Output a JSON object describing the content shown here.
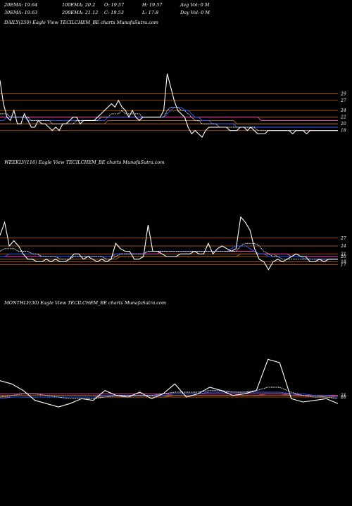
{
  "header": {
    "row1": [
      "20EMA: 19.64",
      "100EMA: 20.2",
      "O: 19.57",
      "H: 19.57",
      "Avg Vol: 0  M"
    ],
    "row2": [
      "30EMA: 19.63",
      "200EMA: 21.12",
      "C: 19.53",
      "L: 17.8",
      "Day Vol: 0  M"
    ]
  },
  "colors": {
    "price": "#ffffff",
    "ema_fast": "#ffffff",
    "ema_blue": "#2a5cff",
    "ema_pink": "#ff44cc",
    "ema_brown": "#b26a2a",
    "levels": "#cc6a1a"
  },
  "chart_data": [
    {
      "type": "line",
      "title": "DAILY(250) Eagle  View  TECILCHEM_BE charts MunafaSutra.com",
      "yticks": [
        "29",
        "27",
        "24",
        "22",
        "20",
        "18"
      ],
      "ylim": [
        15,
        36
      ],
      "levels": [
        29,
        27,
        24,
        22,
        20,
        18
      ],
      "series": [
        {
          "role": "price",
          "values": [
            33,
            26,
            22,
            21,
            24,
            20,
            20,
            23,
            21,
            19,
            19,
            21,
            20,
            20,
            19,
            18,
            19,
            18,
            20,
            20,
            21,
            22,
            22,
            20,
            21,
            21,
            21,
            21,
            22,
            23,
            24,
            25,
            26,
            25,
            27,
            25,
            24,
            22,
            24,
            22,
            21,
            22,
            22,
            22,
            22,
            22,
            22,
            24,
            35,
            31,
            27,
            24,
            23,
            22,
            19,
            17,
            18,
            17,
            16,
            18,
            19,
            19,
            19,
            19,
            19,
            19,
            18,
            18,
            18,
            19,
            19,
            18,
            19,
            18,
            17,
            17,
            17,
            18,
            18,
            18,
            18,
            18,
            18,
            18,
            17,
            18,
            18,
            18,
            17,
            18,
            18,
            18,
            18,
            18,
            18,
            18,
            18,
            18
          ]
        },
        {
          "role": "ema_fast",
          "values": [
            23,
            23,
            23,
            22,
            22,
            22,
            22,
            22,
            22,
            21,
            21,
            21,
            21,
            21,
            21,
            20,
            20,
            20,
            20,
            20,
            20,
            20,
            21,
            21,
            21,
            21,
            21,
            21,
            21,
            22,
            22,
            22,
            23,
            23,
            23,
            24,
            23,
            23,
            23,
            23,
            23,
            22,
            22,
            22,
            22,
            22,
            22,
            22,
            24,
            25,
            25,
            25,
            24,
            24,
            23,
            22,
            21,
            21,
            20,
            20,
            20,
            20,
            20,
            19,
            19,
            19,
            19,
            19,
            19,
            19,
            19,
            19,
            19,
            19,
            18,
            18,
            18,
            18,
            18,
            18,
            18,
            18,
            18,
            18,
            18,
            18,
            18,
            18,
            18,
            18,
            18,
            18,
            18,
            18,
            18,
            18,
            18,
            18
          ]
        },
        {
          "role": "ema_blue",
          "values": [
            21,
            21,
            22,
            22,
            22,
            22,
            22,
            22,
            21,
            21,
            21,
            21,
            21,
            21,
            21,
            21,
            21,
            21,
            21,
            21,
            21,
            21,
            21,
            21,
            21,
            21,
            21,
            21,
            21,
            21,
            21,
            22,
            22,
            22,
            22,
            22,
            22,
            22,
            22,
            22,
            22,
            22,
            22,
            22,
            22,
            22,
            22,
            22,
            23,
            24,
            25,
            25,
            25,
            24,
            24,
            23,
            22,
            22,
            21,
            21,
            21,
            20,
            20,
            20,
            20,
            20,
            20,
            20,
            19,
            19,
            19,
            19,
            19,
            19,
            19,
            19,
            19,
            19,
            19,
            19,
            19,
            19,
            19,
            19,
            19,
            19,
            19,
            19,
            19,
            19,
            19,
            19,
            19,
            19,
            19,
            19,
            19,
            19
          ]
        },
        {
          "role": "ema_pink",
          "values": [
            22,
            22,
            22,
            22,
            22,
            22,
            22,
            22,
            22,
            22,
            22,
            22,
            22,
            22,
            22,
            22,
            22,
            22,
            22,
            22,
            22,
            22,
            22,
            22,
            22,
            22,
            22,
            22,
            22,
            22,
            22,
            22,
            22,
            22,
            22,
            22,
            22,
            22,
            22,
            22,
            22,
            22,
            22,
            22,
            22,
            22,
            22,
            22,
            22,
            22,
            22,
            22,
            22,
            22,
            22,
            22,
            22,
            22,
            22,
            22,
            22,
            22,
            22,
            22,
            22,
            22,
            22,
            22,
            22,
            22,
            22,
            22,
            22,
            22,
            22,
            21,
            21,
            21,
            21,
            21,
            21,
            21,
            21,
            21,
            21,
            21,
            21,
            21,
            21,
            21,
            21,
            21,
            21,
            21,
            21,
            21,
            21,
            21
          ]
        },
        {
          "role": "ema_brown",
          "values": [
            20,
            20,
            20,
            20,
            20,
            20,
            20,
            20,
            20,
            20,
            20,
            20,
            20,
            20,
            20,
            20,
            20,
            20,
            20,
            20,
            20,
            20,
            20,
            20,
            20,
            20,
            20,
            20,
            20,
            20,
            20,
            21,
            21,
            21,
            21,
            21,
            21,
            21,
            21,
            21,
            21,
            21,
            21,
            21,
            21,
            21,
            21,
            21,
            21,
            21,
            21,
            21,
            21,
            21,
            21,
            21,
            21,
            21,
            21,
            21,
            21,
            21,
            21,
            21,
            21,
            21,
            21,
            21,
            20,
            20,
            20,
            20,
            20,
            20,
            20,
            20,
            20,
            20,
            20,
            20,
            20,
            20,
            20,
            20,
            20,
            20,
            20,
            20,
            20,
            20,
            20,
            20,
            20,
            20,
            20,
            20,
            20,
            20
          ]
        }
      ]
    },
    {
      "type": "line",
      "title": "WEEKLY(116) Eagle  View  TECILCHEM_BE charts MunafaSutra.com",
      "yticks": [
        "27",
        "24",
        "21",
        "20",
        "18",
        "17"
      ],
      "ylim": [
        12,
        36
      ],
      "levels": [
        27,
        24,
        21,
        20,
        18,
        17
      ],
      "series": [
        {
          "role": "price",
          "values": [
            28,
            33,
            24,
            26,
            24,
            21,
            19,
            19,
            18,
            18,
            19,
            18,
            19,
            18,
            18,
            19,
            21,
            21,
            19,
            20,
            19,
            18,
            19,
            18,
            19,
            25,
            23,
            22,
            22,
            19,
            19,
            20,
            32,
            22,
            22,
            21,
            20,
            20,
            20,
            21,
            21,
            21,
            22,
            21,
            21,
            25,
            21,
            23,
            24,
            23,
            22,
            23,
            35,
            33,
            30,
            23,
            19,
            18,
            15,
            18,
            19,
            18,
            19,
            20,
            21,
            20,
            20,
            18,
            18,
            19,
            18,
            19,
            19,
            19
          ]
        },
        {
          "role": "ema_fast",
          "values": [
            22,
            23,
            23,
            23,
            22,
            22,
            22,
            21,
            21,
            20,
            20,
            20,
            20,
            19,
            19,
            19,
            20,
            20,
            20,
            20,
            20,
            20,
            20,
            19,
            19,
            20,
            21,
            21,
            21,
            21,
            21,
            21,
            22,
            22,
            22,
            22,
            22,
            22,
            22,
            22,
            22,
            22,
            22,
            22,
            22,
            22,
            22,
            22,
            22,
            22,
            22,
            22,
            24,
            25,
            25,
            25,
            24,
            22,
            21,
            20,
            20,
            19,
            19,
            19,
            19,
            19,
            19,
            19,
            19,
            19,
            19,
            19,
            19,
            19
          ]
        },
        {
          "role": "ema_blue",
          "values": [
            20,
            20,
            21,
            21,
            21,
            21,
            21,
            21,
            21,
            20,
            20,
            20,
            20,
            20,
            20,
            20,
            20,
            20,
            20,
            20,
            20,
            20,
            20,
            20,
            20,
            21,
            21,
            21,
            21,
            21,
            21,
            21,
            22,
            22,
            22,
            22,
            22,
            22,
            22,
            22,
            22,
            22,
            22,
            22,
            22,
            22,
            22,
            22,
            22,
            22,
            23,
            24,
            24,
            24,
            23,
            22,
            21,
            21,
            20,
            20,
            20,
            20,
            20,
            20,
            20,
            20,
            19,
            19,
            19,
            19,
            19,
            19,
            19,
            19
          ]
        },
        {
          "role": "ema_pink",
          "values": [
            20,
            20,
            20,
            20,
            20,
            20,
            20,
            20,
            20,
            20,
            20,
            20,
            20,
            20,
            20,
            20,
            20,
            20,
            20,
            20,
            20,
            20,
            20,
            20,
            20,
            21,
            21,
            21,
            21,
            21,
            21,
            21,
            21,
            21,
            21,
            22,
            22,
            22,
            22,
            22,
            22,
            22,
            22,
            22,
            22,
            22,
            22,
            22,
            22,
            22,
            22,
            22,
            22,
            22,
            22,
            22,
            21,
            21,
            21,
            21,
            21,
            21,
            21,
            20,
            20,
            20,
            20,
            20,
            20,
            20,
            20,
            20,
            20,
            20
          ]
        },
        {
          "role": "ema_brown",
          "values": [
            19,
            19,
            19,
            19,
            19,
            19,
            19,
            19,
            19,
            19,
            19,
            19,
            19,
            19,
            19,
            19,
            19,
            19,
            19,
            19,
            19,
            19,
            19,
            19,
            19,
            19,
            20,
            20,
            20,
            20,
            20,
            20,
            20,
            20,
            20,
            20,
            20,
            20,
            20,
            20,
            20,
            20,
            20,
            20,
            20,
            20,
            20,
            20,
            20,
            20,
            20,
            20,
            21,
            21,
            21,
            21,
            21,
            21,
            21,
            21,
            20,
            20,
            20,
            20,
            20,
            20,
            20,
            20,
            20,
            20,
            20,
            20,
            20,
            20
          ]
        }
      ]
    },
    {
      "type": "line",
      "title": "MONTHLY(30) Eagle  View  TECILCHEM_BE charts MunafaSutra.com",
      "yticks": [
        "21",
        "20"
      ],
      "ylim": [
        5,
        50
      ],
      "levels": [
        21,
        20
      ],
      "series": [
        {
          "role": "price",
          "values": [
            30,
            28,
            24,
            18,
            16,
            14,
            16,
            19,
            18,
            24,
            21,
            20,
            23,
            19,
            22,
            28,
            20,
            22,
            26,
            24,
            21,
            22,
            24,
            43,
            41,
            19,
            17,
            18,
            19,
            16
          ]
        },
        {
          "role": "ema_fast",
          "values": [
            20,
            21,
            22,
            22,
            21,
            20,
            19,
            19,
            19,
            20,
            21,
            21,
            21,
            21,
            22,
            23,
            23,
            23,
            24,
            24,
            23,
            23,
            24,
            26,
            26,
            23,
            21,
            20,
            20,
            19
          ]
        },
        {
          "role": "ema_blue",
          "values": [
            19,
            20,
            20,
            20,
            20,
            20,
            20,
            20,
            20,
            21,
            21,
            21,
            21,
            21,
            21,
            22,
            22,
            22,
            23,
            23,
            23,
            23,
            23,
            23,
            23,
            22,
            22,
            21,
            21,
            20
          ]
        },
        {
          "role": "ema_pink",
          "values": [
            22,
            22,
            22,
            22,
            22,
            22,
            22,
            22,
            22,
            22,
            22,
            22,
            22,
            22,
            22,
            22,
            22,
            22,
            22,
            22,
            22,
            22,
            22,
            22,
            22,
            22,
            21,
            21,
            21,
            21
          ]
        },
        {
          "role": "ema_brown",
          "values": [
            20,
            20,
            20,
            20,
            20,
            20,
            20,
            20,
            20,
            20,
            20,
            20,
            20,
            20,
            20,
            21,
            21,
            21,
            21,
            21,
            21,
            21,
            21,
            22,
            22,
            21,
            21,
            21,
            20,
            20
          ]
        }
      ]
    }
  ]
}
